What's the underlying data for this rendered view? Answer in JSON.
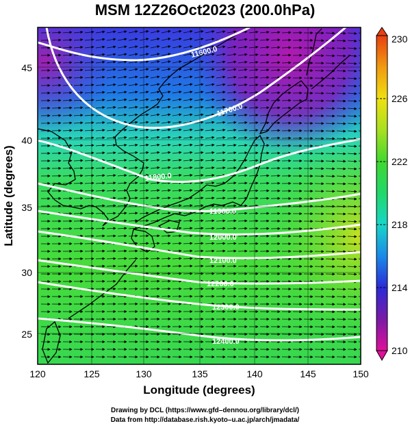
{
  "title": "MSM 12Z26Oct2023 (200.0hPa)",
  "x_axis": {
    "label": "Longitude (degrees)",
    "ticks": [
      "120",
      "125",
      "130",
      "135",
      "140",
      "145",
      "150"
    ],
    "range": [
      120,
      150
    ]
  },
  "y_axis": {
    "label": "Latitude  (degrees)",
    "ticks": [
      "25",
      "30",
      "35",
      "40",
      "45"
    ],
    "range": [
      22.5,
      47.6
    ]
  },
  "colorbar": {
    "ticks": [
      "230",
      "226",
      "222",
      "218",
      "214",
      "210"
    ],
    "range": [
      210,
      230
    ],
    "colors": [
      "#e0109a",
      "#7a1aa6",
      "#2a2ad8",
      "#1a8ae8",
      "#18d6c8",
      "#20d86a",
      "#40d830",
      "#a8e020",
      "#f0e010",
      "#f09a10",
      "#e84010"
    ]
  },
  "contours": [
    {
      "label": "11600.0"
    },
    {
      "label": "11700.0"
    },
    {
      "label": "11800.0"
    },
    {
      "label": "11900.0"
    },
    {
      "label": "12000.0"
    },
    {
      "label": "12100.0"
    },
    {
      "label": "12200.0"
    },
    {
      "label": "12300.0"
    },
    {
      "label": "12400.0"
    }
  ],
  "credits": {
    "line1": "Drawing by DCL (https://www.gfd–dennou.org/library/dcl/)",
    "line2": "Data from http://database.rish.kyoto–u.ac.jp/arch/jmadata/"
  }
}
